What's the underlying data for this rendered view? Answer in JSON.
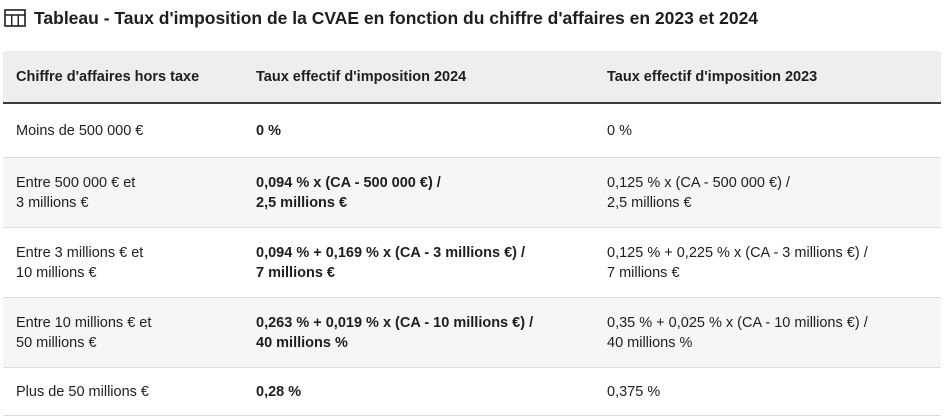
{
  "title": "Tableau - Taux d'imposition de la CVAE en fonction du chiffre d'affaires en 2023 et 2024",
  "icon": "table-icon",
  "table": {
    "headers": [
      "Chiffre d'affaires hors taxe",
      "Taux effectif d'imposition 2024",
      "Taux effectif d'imposition 2023"
    ],
    "rows": [
      {
        "ca": [
          "Moins de 500 000 €"
        ],
        "taux2024": [
          "0 %"
        ],
        "taux2023": [
          "0 %"
        ]
      },
      {
        "ca": [
          "Entre 500 000 € et",
          "3 millions €"
        ],
        "taux2024": [
          "0,094 % x (CA - 500 000 €) /",
          "2,5 millions €"
        ],
        "taux2023": [
          "0,125 % x (CA - 500 000 €) /",
          "2,5 millions €"
        ]
      },
      {
        "ca": [
          "Entre 3 millions € et",
          "10 millions €"
        ],
        "taux2024": [
          "0,094 % + 0,169 % x (CA - 3 millions €) /",
          "7 millions €"
        ],
        "taux2023": [
          "0,125 % + 0,225 % x (CA - 3 millions €) /",
          "7 millions €"
        ]
      },
      {
        "ca": [
          "Entre 10 millions € et",
          "50 millions €"
        ],
        "taux2024": [
          "0,263 % + 0,019 % x (CA - 10 millions €) /",
          "40 millions %"
        ],
        "taux2023": [
          "0,35 % + 0,025 % x (CA - 10 millions €) /",
          "40 millions %"
        ]
      },
      {
        "ca": [
          "Plus de 50 millions €"
        ],
        "taux2024": [
          "0,28 %"
        ],
        "taux2023": [
          "0,375 %"
        ]
      }
    ]
  }
}
